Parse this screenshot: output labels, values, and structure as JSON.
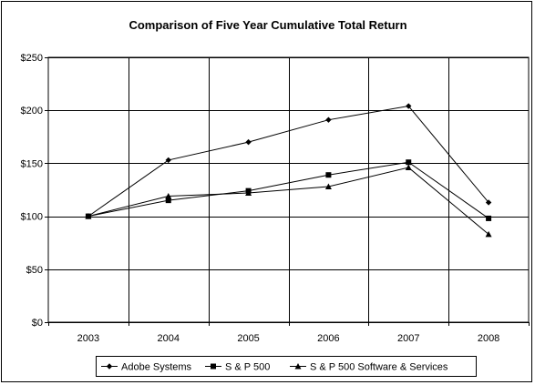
{
  "chart_data": {
    "type": "line",
    "title": "Comparison of Five Year Cumulative Total Return",
    "xlabel": "",
    "ylabel": "",
    "categories": [
      "2003",
      "2004",
      "2005",
      "2006",
      "2007",
      "2008"
    ],
    "ylim": [
      0,
      250
    ],
    "yticks": [
      0,
      50,
      100,
      150,
      200,
      250
    ],
    "ytick_labels": [
      "$0",
      "$50",
      "$100",
      "$150",
      "$200",
      "$250"
    ],
    "grid": true,
    "legend_position": "bottom",
    "series": [
      {
        "name": "Adobe Systems",
        "marker": "diamond",
        "values": [
          100,
          153,
          170,
          191,
          204,
          113
        ]
      },
      {
        "name": "S & P 500",
        "marker": "square",
        "values": [
          100,
          115,
          124,
          139,
          151,
          98
        ]
      },
      {
        "name": "S & P 500 Software & Services",
        "marker": "triangle",
        "values": [
          100,
          119,
          122,
          128,
          146,
          83
        ]
      }
    ]
  }
}
